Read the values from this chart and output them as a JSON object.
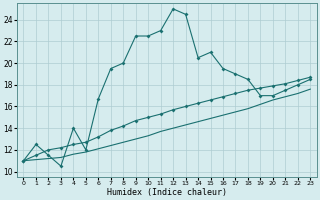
{
  "title": "",
  "xlabel": "Humidex (Indice chaleur)",
  "ylabel": "",
  "xlim": [
    -0.5,
    23.5
  ],
  "ylim": [
    9.5,
    25.5
  ],
  "xticks": [
    0,
    1,
    2,
    3,
    4,
    5,
    6,
    7,
    8,
    9,
    10,
    11,
    12,
    13,
    14,
    15,
    16,
    17,
    18,
    19,
    20,
    21,
    22,
    23
  ],
  "yticks": [
    10,
    12,
    14,
    16,
    18,
    20,
    22,
    24
  ],
  "bg_color": "#d6ecee",
  "grid_color": "#aecdd2",
  "line_color": "#1a7070",
  "series1_x": [
    0,
    1,
    2,
    3,
    4,
    5,
    6,
    7,
    8,
    9,
    10,
    11,
    12,
    13,
    14,
    15,
    16,
    17,
    18,
    19,
    20,
    21,
    22,
    23
  ],
  "series1_y": [
    11,
    12.5,
    11.5,
    10.5,
    14,
    12,
    16.7,
    19.5,
    20,
    22.5,
    22.5,
    23,
    25,
    24.5,
    20.5,
    21,
    19.5,
    19,
    18.5,
    17,
    17,
    17.5,
    18,
    18.5
  ],
  "series2_x": [
    0,
    1,
    2,
    3,
    4,
    5,
    6,
    7,
    8,
    9,
    10,
    11,
    12,
    13,
    14,
    15,
    16,
    17,
    18,
    19,
    20,
    21,
    22,
    23
  ],
  "series2_y": [
    11,
    11.5,
    12,
    12.2,
    12.5,
    12.7,
    13.2,
    13.8,
    14.2,
    14.7,
    15.0,
    15.3,
    15.7,
    16.0,
    16.3,
    16.6,
    16.9,
    17.2,
    17.5,
    17.7,
    17.9,
    18.1,
    18.4,
    18.7
  ],
  "series3_x": [
    0,
    1,
    2,
    3,
    4,
    5,
    6,
    7,
    8,
    9,
    10,
    11,
    12,
    13,
    14,
    15,
    16,
    17,
    18,
    19,
    20,
    21,
    22,
    23
  ],
  "series3_y": [
    11,
    11.1,
    11.2,
    11.3,
    11.6,
    11.8,
    12.1,
    12.4,
    12.7,
    13.0,
    13.3,
    13.7,
    14.0,
    14.3,
    14.6,
    14.9,
    15.2,
    15.5,
    15.8,
    16.2,
    16.6,
    16.9,
    17.2,
    17.6
  ]
}
